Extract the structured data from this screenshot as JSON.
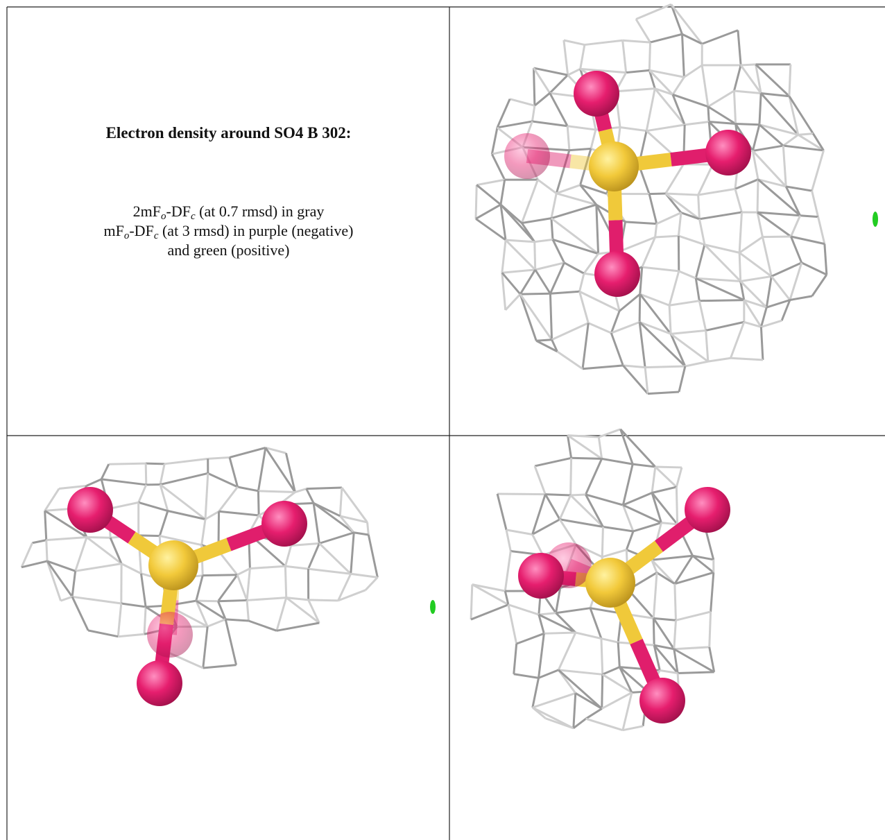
{
  "header": {
    "title": "Electron density around SO4 B 302:"
  },
  "description": {
    "lines": [
      [
        {
          "text": "2mF"
        },
        {
          "text": "o",
          "sub": true
        },
        {
          "text": "-DF"
        },
        {
          "text": "c",
          "sub": true
        },
        {
          "text": " (at 0.7 rmsd) in gray"
        }
      ],
      [
        {
          "text": "mF"
        },
        {
          "text": "o",
          "sub": true
        },
        {
          "text": "-DF"
        },
        {
          "text": "c",
          "sub": true
        },
        {
          "text": " (at 3 rmsd) in purple (negative)"
        }
      ],
      [
        {
          "text": "and green (positive)"
        }
      ]
    ]
  }
}
